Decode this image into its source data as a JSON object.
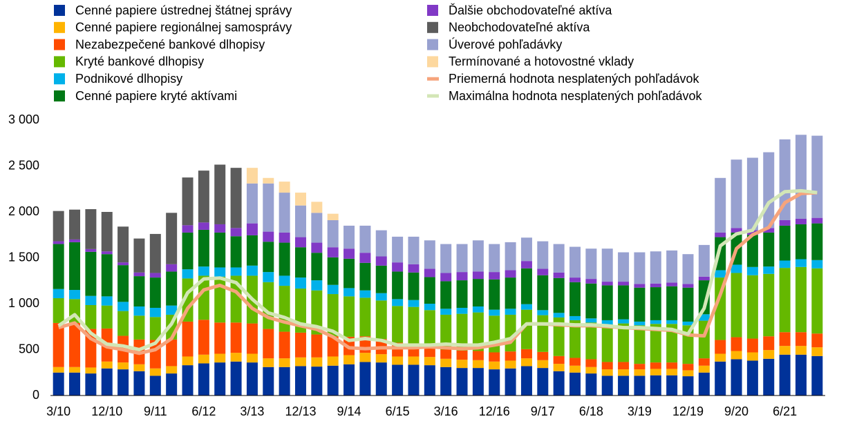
{
  "chart_data": {
    "type": "bar",
    "stacked": true,
    "categories": [
      "3/10",
      null,
      null,
      "12/10",
      null,
      null,
      "9/11",
      null,
      null,
      "6/12",
      null,
      null,
      "3/13",
      null,
      null,
      "12/13",
      null,
      null,
      "9/14",
      null,
      null,
      "6/15",
      null,
      null,
      "3/16",
      null,
      null,
      "12/16",
      null,
      null,
      "9/17",
      null,
      null,
      "6/18",
      null,
      null,
      "3/19",
      null,
      null,
      "12/19",
      null,
      null,
      "9/20",
      null,
      null,
      "6/21",
      null,
      null
    ],
    "ylim": [
      0,
      3000
    ],
    "yticks": [
      0,
      500,
      {
        "value": 1000,
        "label": "1 000"
      },
      {
        "value": 1500,
        "label": "1 500"
      },
      {
        "value": 2000,
        "label": "2 000"
      },
      {
        "value": 2500,
        "label": "2 500"
      },
      {
        "value": 3000,
        "label": "3 000"
      }
    ],
    "grid": false,
    "series": [
      {
        "name": "Cenné papiere ústrednej štátnej správy",
        "type": "bar",
        "color": "#003299",
        "values": [
          250,
          250,
          240,
          295,
          285,
          265,
          215,
          240,
          330,
          350,
          360,
          370,
          360,
          310,
          310,
          320,
          315,
          325,
          340,
          365,
          360,
          335,
          335,
          330,
          310,
          300,
          300,
          285,
          295,
          320,
          300,
          265,
          250,
          240,
          215,
          215,
          215,
          220,
          220,
          210,
          250,
          370,
          395,
          380,
          400,
          445,
          445,
          430
        ]
      },
      {
        "name": "Cenné papiere regionálnej samosprávy",
        "type": "bar",
        "color": "#ffb400",
        "values": [
          60,
          60,
          65,
          75,
          75,
          75,
          80,
          80,
          95,
          95,
          95,
          95,
          95,
          95,
          95,
          95,
          100,
          100,
          100,
          100,
          90,
          90,
          90,
          90,
          90,
          90,
          85,
          85,
          85,
          85,
          85,
          80,
          75,
          70,
          70,
          70,
          70,
          70,
          70,
          65,
          75,
          85,
          90,
          90,
          95,
          95,
          95,
          95
        ]
      },
      {
        "name": "Nezabezpečené bankové dlhopisy",
        "type": "bar",
        "color": "#ff4b00",
        "values": [
          480,
          480,
          420,
          360,
          290,
          270,
          310,
          290,
          380,
          380,
          340,
          330,
          330,
          320,
          290,
          270,
          250,
          220,
          200,
          180,
          165,
          150,
          140,
          120,
          100,
          100,
          100,
          100,
          100,
          100,
          90,
          85,
          85,
          85,
          80,
          80,
          60,
          70,
          70,
          70,
          80,
          150,
          150,
          150,
          150,
          150,
          150,
          150
        ]
      },
      {
        "name": "Kryté bankové dlhopisy",
        "type": "bar",
        "color": "#65b800",
        "values": [
          270,
          260,
          260,
          250,
          270,
          260,
          250,
          270,
          470,
          480,
          500,
          510,
          520,
          510,
          500,
          480,
          480,
          460,
          440,
          420,
          420,
          400,
          400,
          390,
          380,
          400,
          420,
          400,
          400,
          430,
          400,
          420,
          410,
          400,
          410,
          420,
          420,
          420,
          420,
          420,
          410,
          680,
          700,
          690,
          680,
          700,
          710,
          710
        ]
      },
      {
        "name": "Podnikové dlhopisy",
        "type": "bar",
        "color": "#00b1ea",
        "values": [
          100,
          100,
          100,
          100,
          100,
          100,
          100,
          100,
          100,
          100,
          100,
          90,
          110,
          110,
          110,
          120,
          110,
          100,
          90,
          80,
          80,
          75,
          75,
          70,
          65,
          65,
          65,
          65,
          65,
          60,
          55,
          50,
          45,
          45,
          45,
          45,
          40,
          40,
          40,
          40,
          70,
          80,
          90,
          90,
          80,
          80,
          85,
          90
        ]
      },
      {
        "name": "Cenné papiere kryté aktívami",
        "type": "bar",
        "color": "#007816",
        "values": [
          490,
          520,
          480,
          460,
          400,
          330,
          330,
          370,
          400,
          400,
          380,
          340,
          330,
          330,
          360,
          330,
          300,
          300,
          320,
          300,
          300,
          300,
          300,
          290,
          300,
          300,
          300,
          330,
          340,
          390,
          380,
          380,
          370,
          380,
          380,
          370,
          370,
          360,
          370,
          370,
          370,
          360,
          350,
          350,
          370,
          380,
          380,
          400
        ]
      },
      {
        "name": "Ďalšie obchodovateľné aktíva",
        "type": "bar",
        "color": "#8139c6",
        "values": [
          30,
          30,
          30,
          30,
          30,
          40,
          50,
          80,
          80,
          80,
          90,
          90,
          130,
          110,
          110,
          110,
          110,
          110,
          110,
          110,
          100,
          100,
          90,
          90,
          90,
          90,
          80,
          80,
          80,
          80,
          70,
          60,
          50,
          50,
          40,
          40,
          40,
          40,
          40,
          40,
          40,
          50,
          50,
          50,
          50,
          60,
          60,
          60
        ]
      },
      {
        "name": "Neobchodovateľné aktíva",
        "type": "bar",
        "color": "#5c5c5c",
        "values": [
          330,
          325,
          435,
          430,
          390,
          370,
          425,
          560,
          520,
          565,
          650,
          655,
          0,
          0,
          0,
          0,
          0,
          0,
          0,
          0,
          0,
          0,
          0,
          0,
          0,
          0,
          0,
          0,
          0,
          0,
          0,
          0,
          0,
          0,
          0,
          0,
          0,
          0,
          0,
          0,
          0,
          0,
          0,
          0,
          0,
          0,
          0,
          0
        ]
      },
      {
        "name": "Úverové pohľadávky",
        "type": "bar",
        "color": "#98a1d0",
        "values": [
          0,
          0,
          0,
          0,
          0,
          0,
          0,
          0,
          0,
          0,
          0,
          0,
          435,
          525,
          435,
          345,
          325,
          295,
          250,
          295,
          285,
          280,
          300,
          310,
          315,
          305,
          340,
          305,
          305,
          255,
          300,
          310,
          335,
          330,
          360,
          320,
          345,
          350,
          350,
          325,
          345,
          595,
          745,
          790,
          825,
          880,
          915,
          895
        ]
      },
      {
        "name": "Termínované a hotovostné vklady",
        "type": "bar",
        "color": "#fdd89f",
        "values": [
          0,
          0,
          0,
          0,
          0,
          0,
          0,
          0,
          0,
          0,
          0,
          0,
          170,
          60,
          120,
          140,
          120,
          70,
          0,
          0,
          0,
          0,
          0,
          0,
          0,
          0,
          0,
          0,
          0,
          0,
          0,
          0,
          0,
          0,
          0,
          0,
          0,
          0,
          0,
          0,
          0,
          0,
          0,
          0,
          0,
          0,
          0,
          0
        ]
      },
      {
        "name": "Priemerná hodnota nesplatených pohľadávok",
        "type": "line",
        "color": "#f6a47c",
        "values": [
          740,
          790,
          620,
          530,
          500,
          460,
          500,
          620,
          950,
          1150,
          1200,
          1130,
          950,
          850,
          800,
          760,
          720,
          640,
          520,
          510,
          520,
          520,
          520,
          530,
          520,
          510,
          520,
          550,
          580,
          780,
          780,
          770,
          760,
          760,
          750,
          740,
          730,
          720,
          710,
          660,
          650,
          1100,
          1600,
          1750,
          1830,
          2100,
          2200,
          2210
        ]
      },
      {
        "name": "Maximálna hodnota nesplatených pohľadávok",
        "type": "line",
        "color": "#d3e6b6",
        "values": [
          760,
          880,
          680,
          560,
          540,
          500,
          570,
          780,
          1120,
          1270,
          1280,
          1230,
          1050,
          900,
          850,
          780,
          750,
          700,
          600,
          620,
          600,
          550,
          550,
          550,
          560,
          550,
          550,
          580,
          620,
          780,
          780,
          780,
          770,
          770,
          760,
          740,
          740,
          730,
          720,
          670,
          950,
          1630,
          1760,
          1800,
          2100,
          2220,
          2230,
          2210
        ]
      }
    ]
  }
}
